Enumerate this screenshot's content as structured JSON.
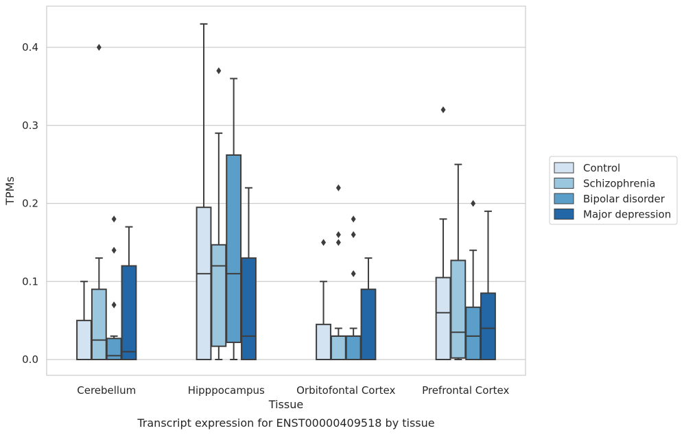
{
  "chart_data": {
    "type": "box",
    "title": "Transcript expression for ENST00000409518 by tissue",
    "xlabel": "Tissue",
    "ylabel": "TPMs",
    "ylim": [
      -0.02,
      0.455
    ],
    "yticks": [
      0.0,
      0.1,
      0.2,
      0.3,
      0.4
    ],
    "ytick_labels": [
      "0.0",
      "0.1",
      "0.2",
      "0.3",
      "0.4"
    ],
    "grid": true,
    "legend_position": "right",
    "categories": [
      "Cerebellum",
      "Hipppocampus",
      "Orbitofontal Cortex",
      "Prefrontal Cortex"
    ],
    "series": [
      {
        "name": "Control",
        "color": "#d3e3f2",
        "boxes": [
          {
            "min": 0.0,
            "q1": 0.0,
            "median": 0.0,
            "q3": 0.05,
            "max": 0.1,
            "outliers": []
          },
          {
            "min": 0.0,
            "q1": 0.0,
            "median": 0.11,
            "q3": 0.195,
            "max": 0.43,
            "outliers": []
          },
          {
            "min": 0.0,
            "q1": 0.0,
            "median": 0.0,
            "q3": 0.045,
            "max": 0.1,
            "outliers": [
              0.15
            ]
          },
          {
            "min": 0.0,
            "q1": 0.0,
            "median": 0.06,
            "q3": 0.105,
            "max": 0.18,
            "outliers": [
              0.32
            ]
          }
        ]
      },
      {
        "name": "Schizophrenia",
        "color": "#9ac7de",
        "boxes": [
          {
            "min": 0.0,
            "q1": 0.0,
            "median": 0.025,
            "q3": 0.09,
            "max": 0.13,
            "outliers": [
              0.4
            ]
          },
          {
            "min": 0.0,
            "q1": 0.017,
            "median": 0.12,
            "q3": 0.147,
            "max": 0.29,
            "outliers": [
              0.37
            ]
          },
          {
            "min": 0.0,
            "q1": 0.0,
            "median": 0.03,
            "q3": 0.03,
            "max": 0.04,
            "outliers": [
              0.15,
              0.16,
              0.22
            ]
          },
          {
            "min": 0.0,
            "q1": 0.002,
            "median": 0.035,
            "q3": 0.127,
            "max": 0.25,
            "outliers": []
          }
        ]
      },
      {
        "name": "Bipolar disorder",
        "color": "#5a9ec9",
        "boxes": [
          {
            "min": 0.0,
            "q1": 0.0,
            "median": 0.005,
            "q3": 0.027,
            "max": 0.03,
            "outliers": [
              0.07,
              0.14,
              0.18
            ]
          },
          {
            "min": 0.0,
            "q1": 0.022,
            "median": 0.11,
            "q3": 0.262,
            "max": 0.36,
            "outliers": []
          },
          {
            "min": 0.0,
            "q1": 0.0,
            "median": 0.03,
            "q3": 0.03,
            "max": 0.04,
            "outliers": [
              0.11,
              0.16,
              0.18
            ]
          },
          {
            "min": 0.0,
            "q1": 0.0,
            "median": 0.03,
            "q3": 0.067,
            "max": 0.14,
            "outliers": [
              0.2
            ]
          }
        ]
      },
      {
        "name": "Major depression",
        "color": "#2467a6",
        "boxes": [
          {
            "min": 0.0,
            "q1": 0.0,
            "median": 0.01,
            "q3": 0.12,
            "max": 0.17,
            "outliers": []
          },
          {
            "min": 0.0,
            "q1": 0.0,
            "median": 0.03,
            "q3": 0.13,
            "max": 0.22,
            "outliers": []
          },
          {
            "min": 0.0,
            "q1": 0.0,
            "median": 0.0,
            "q3": 0.09,
            "max": 0.13,
            "outliers": []
          },
          {
            "min": 0.0,
            "q1": 0.0,
            "median": 0.04,
            "q3": 0.085,
            "max": 0.19,
            "outliers": []
          }
        ]
      }
    ]
  }
}
